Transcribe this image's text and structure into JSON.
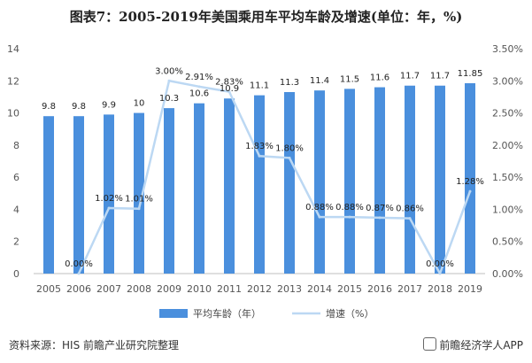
{
  "title": "图表7：2005-2019年美国乘用车平均车龄及增速(单位：年，%)",
  "footer": {
    "source": "资料来源：HIS 前瞻产业研究院整理",
    "brand": "前瞻经济学人APP"
  },
  "colors": {
    "bar": "#4a8fdd",
    "line": "#bcd8f3"
  },
  "chart_data": {
    "type": "bar",
    "categories": [
      "2005",
      "2006",
      "2007",
      "2008",
      "2009",
      "2010",
      "2011",
      "2012",
      "2013",
      "2014",
      "2015",
      "2016",
      "2017",
      "2018",
      "2019"
    ],
    "series": [
      {
        "name": "平均车龄（年）",
        "type": "bar",
        "axis": "left",
        "values": [
          9.8,
          9.8,
          9.9,
          10,
          10.3,
          10.6,
          10.9,
          11.1,
          11.3,
          11.4,
          11.5,
          11.6,
          11.7,
          11.7,
          11.85
        ],
        "labels": [
          "9.8",
          "9.8",
          "9.9",
          "10",
          "10.3",
          "10.6",
          "10.9",
          "11.1",
          "11.3",
          "11.4",
          "11.5",
          "11.6",
          "11.7",
          "11.7",
          "11.85"
        ]
      },
      {
        "name": "增速（%）",
        "type": "line",
        "axis": "right",
        "values": [
          null,
          0.0,
          1.02,
          1.01,
          3.0,
          2.91,
          2.83,
          1.83,
          1.8,
          0.88,
          0.88,
          0.87,
          0.86,
          0.0,
          1.28
        ],
        "labels": [
          "",
          "0.00%",
          "1.02%",
          "1.01%",
          "3.00%",
          "2.91%",
          "2.83%",
          "1.83%",
          "1.80%",
          "0.88%",
          "0.88%",
          "0.87%",
          "0.86%",
          "0.00%",
          "1.28%"
        ]
      }
    ],
    "y_left": {
      "min": 0,
      "max": 14,
      "ticks": [
        "0",
        "2",
        "4",
        "6",
        "8",
        "10",
        "12",
        "14"
      ]
    },
    "y_right": {
      "min": 0,
      "max": 3.5,
      "ticks": [
        "0.00%",
        "0.50%",
        "1.00%",
        "1.50%",
        "2.00%",
        "2.50%",
        "3.00%",
        "3.50%"
      ]
    },
    "grid": false,
    "legend": "bottom"
  }
}
